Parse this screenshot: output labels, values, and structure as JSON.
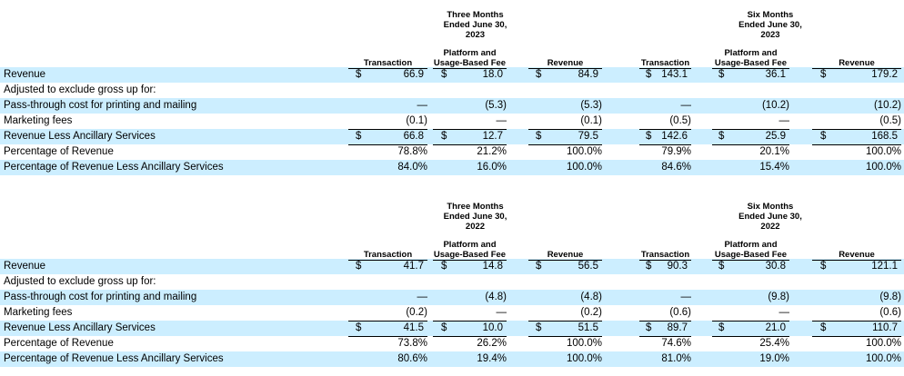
{
  "tables": [
    {
      "period_headers": [
        {
          "line1": "Three Months",
          "line2": "Ended June 30,",
          "line3": "2023"
        },
        {
          "line1": "Six Months",
          "line2": "Ended June 30,",
          "line3": "2023"
        }
      ],
      "column_headers": [
        {
          "line1": "",
          "line2": "Transaction"
        },
        {
          "line1": "Platform and",
          "line2": "Usage-Based Fee"
        },
        {
          "line1": "",
          "line2": "Revenue"
        },
        {
          "line1": "",
          "line2": "Transaction"
        },
        {
          "line1": "Platform and",
          "line2": "Usage-Based Fee"
        },
        {
          "line1": "",
          "line2": "Revenue"
        }
      ],
      "rows": [
        {
          "label": "Revenue",
          "cells": [
            {
              "sym": "$",
              "val": "66.9"
            },
            {
              "sym": "$",
              "val": "18.0"
            },
            {
              "sym": "$",
              "val": "84.9"
            },
            {
              "sym": "$",
              "val": "143.1"
            },
            {
              "sym": "$",
              "val": "36.1"
            },
            {
              "sym": "$",
              "val": "179.2"
            }
          ]
        },
        {
          "label": "Adjusted to exclude gross up for:",
          "cells": []
        },
        {
          "label": "Pass-through cost for printing and mailing",
          "cells": [
            {
              "sym": "",
              "val": "—"
            },
            {
              "sym": "",
              "val": "(5.3)"
            },
            {
              "sym": "",
              "val": "(5.3)"
            },
            {
              "sym": "",
              "val": "—"
            },
            {
              "sym": "",
              "val": "(10.2)"
            },
            {
              "sym": "",
              "val": "(10.2)"
            }
          ]
        },
        {
          "label": "Marketing fees",
          "cells": [
            {
              "sym": "",
              "val": "(0.1)"
            },
            {
              "sym": "",
              "val": "—"
            },
            {
              "sym": "",
              "val": "(0.1)"
            },
            {
              "sym": "",
              "val": "(0.5)"
            },
            {
              "sym": "",
              "val": "—"
            },
            {
              "sym": "",
              "val": "(0.5)"
            }
          ]
        },
        {
          "label": "Revenue Less Ancillary Services",
          "cells": [
            {
              "sym": "$",
              "val": "66.8"
            },
            {
              "sym": "$",
              "val": "12.7"
            },
            {
              "sym": "$",
              "val": "79.5"
            },
            {
              "sym": "$",
              "val": "142.6"
            },
            {
              "sym": "$",
              "val": "25.9"
            },
            {
              "sym": "$",
              "val": "168.5"
            }
          ]
        },
        {
          "label": "Percentage of Revenue",
          "cells": [
            {
              "sym": "",
              "val": "78.8%"
            },
            {
              "sym": "",
              "val": "21.2%"
            },
            {
              "sym": "",
              "val": "100.0%"
            },
            {
              "sym": "",
              "val": "79.9%"
            },
            {
              "sym": "",
              "val": "20.1%"
            },
            {
              "sym": "",
              "val": "100.0%"
            }
          ]
        },
        {
          "label": "Percentage of Revenue Less Ancillary Services",
          "cells": [
            {
              "sym": "",
              "val": "84.0%"
            },
            {
              "sym": "",
              "val": "16.0%"
            },
            {
              "sym": "",
              "val": "100.0%"
            },
            {
              "sym": "",
              "val": "84.6%"
            },
            {
              "sym": "",
              "val": "15.4%"
            },
            {
              "sym": "",
              "val": "100.0%"
            }
          ]
        }
      ]
    },
    {
      "period_headers": [
        {
          "line1": "Three Months",
          "line2": "Ended June 30,",
          "line3": "2022"
        },
        {
          "line1": "Six Months",
          "line2": "Ended June 30,",
          "line3": "2022"
        }
      ],
      "column_headers": [
        {
          "line1": "",
          "line2": "Transaction"
        },
        {
          "line1": "Platform and",
          "line2": "Usage-Based Fee"
        },
        {
          "line1": "",
          "line2": "Revenue"
        },
        {
          "line1": "",
          "line2": "Transaction"
        },
        {
          "line1": "Platform and",
          "line2": "Usage-Based Fee"
        },
        {
          "line1": "",
          "line2": "Revenue"
        }
      ],
      "rows": [
        {
          "label": "Revenue",
          "cells": [
            {
              "sym": "$",
              "val": "41.7"
            },
            {
              "sym": "$",
              "val": "14.8"
            },
            {
              "sym": "$",
              "val": "56.5"
            },
            {
              "sym": "$",
              "val": "90.3"
            },
            {
              "sym": "$",
              "val": "30.8"
            },
            {
              "sym": "$",
              "val": "121.1"
            }
          ]
        },
        {
          "label": "Adjusted to exclude gross up for:",
          "cells": []
        },
        {
          "label": "Pass-through cost for printing and mailing",
          "cells": [
            {
              "sym": "",
              "val": "—"
            },
            {
              "sym": "",
              "val": "(4.8)"
            },
            {
              "sym": "",
              "val": "(4.8)"
            },
            {
              "sym": "",
              "val": "—"
            },
            {
              "sym": "",
              "val": "(9.8)"
            },
            {
              "sym": "",
              "val": "(9.8)"
            }
          ]
        },
        {
          "label": "Marketing fees",
          "cells": [
            {
              "sym": "",
              "val": "(0.2)"
            },
            {
              "sym": "",
              "val": "—"
            },
            {
              "sym": "",
              "val": "(0.2)"
            },
            {
              "sym": "",
              "val": "(0.6)"
            },
            {
              "sym": "",
              "val": "—"
            },
            {
              "sym": "",
              "val": "(0.6)"
            }
          ]
        },
        {
          "label": "Revenue Less Ancillary Services",
          "cells": [
            {
              "sym": "$",
              "val": "41.5"
            },
            {
              "sym": "$",
              "val": "10.0"
            },
            {
              "sym": "$",
              "val": "51.5"
            },
            {
              "sym": "$",
              "val": "89.7"
            },
            {
              "sym": "$",
              "val": "21.0"
            },
            {
              "sym": "$",
              "val": "110.7"
            }
          ]
        },
        {
          "label": "Percentage of Revenue",
          "cells": [
            {
              "sym": "",
              "val": "73.8%"
            },
            {
              "sym": "",
              "val": "26.2%"
            },
            {
              "sym": "",
              "val": "100.0%"
            },
            {
              "sym": "",
              "val": "74.6%"
            },
            {
              "sym": "",
              "val": "25.4%"
            },
            {
              "sym": "",
              "val": "100.0%"
            }
          ]
        },
        {
          "label": "Percentage of Revenue Less Ancillary Services",
          "cells": [
            {
              "sym": "",
              "val": "80.6%"
            },
            {
              "sym": "",
              "val": "19.4%"
            },
            {
              "sym": "",
              "val": "100.0%"
            },
            {
              "sym": "",
              "val": "81.0%"
            },
            {
              "sym": "",
              "val": "19.0%"
            },
            {
              "sym": "",
              "val": "100.0%"
            }
          ]
        }
      ]
    }
  ],
  "colors": {
    "row_band": "#cceeff",
    "text": "#000000"
  }
}
